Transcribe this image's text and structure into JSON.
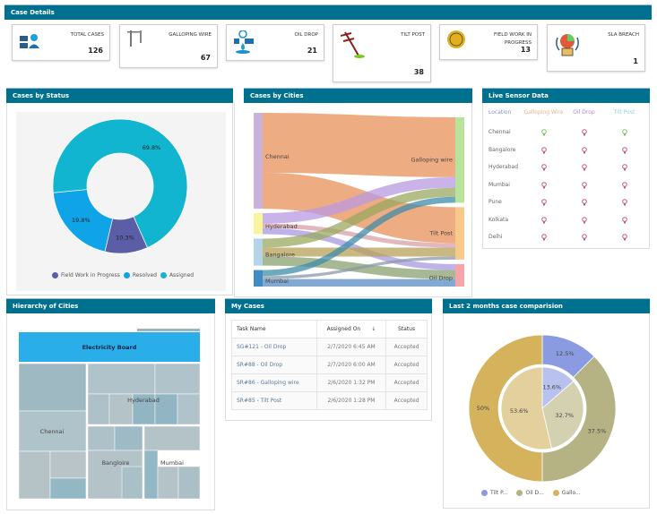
{
  "case_details": {
    "title": "Case Details",
    "cards": [
      {
        "label": "TOTAL CASES",
        "value": "126",
        "icon": "users-screen-icon"
      },
      {
        "label": "GALLOPING WIRE",
        "value": "67",
        "icon": "power-line-icon"
      },
      {
        "label": "OIL DROP",
        "value": "21",
        "icon": "oil-gauge-icon"
      },
      {
        "label": "TILT POST",
        "value": "38",
        "icon": "tilted-post-icon"
      },
      {
        "label": "FIELD WORK IN PROGRESS",
        "value": "13",
        "icon": "work-in-progress-badge-icon"
      },
      {
        "label": "SLA BREACH",
        "value": "1",
        "icon": "sla-timer-icon"
      }
    ]
  },
  "cases_by_status": {
    "title": "Cases by Status"
  },
  "cases_by_cities": {
    "title": "Cases by Cities"
  },
  "live_sensor": {
    "title": "Live Sensor Data",
    "headers": [
      "Location",
      "Galloping Wire",
      "Oil Drop",
      "Tilt Post"
    ],
    "header_colors": [
      "#7d96c8",
      "#e8b38a",
      "#b08ac8",
      "#8fd3d8"
    ],
    "rows": [
      {
        "location": "Chennai",
        "states": [
          "ok",
          "alert",
          "ok"
        ]
      },
      {
        "location": "Bangalore",
        "states": [
          "alert",
          "alert",
          "alert"
        ]
      },
      {
        "location": "Hyderabad",
        "states": [
          "alert",
          "alert",
          "alert"
        ]
      },
      {
        "location": "Mumbai",
        "states": [
          "alert",
          "alert",
          "alert"
        ]
      },
      {
        "location": "Pune",
        "states": [
          "alert",
          "alert",
          "alert"
        ]
      },
      {
        "location": "Kolkata",
        "states": [
          "alert",
          "alert",
          "alert"
        ]
      },
      {
        "location": "Delhi",
        "states": [
          "alert",
          "alert",
          "alert"
        ]
      }
    ],
    "colors": {
      "ok": "#7cc46a",
      "alert": "#c05a86"
    }
  },
  "hierarchy": {
    "title": "Hierarchy of Cities",
    "root": "Electricity Board",
    "cities": [
      "Chennai",
      "Hyderabad",
      "Bangloire",
      "Mumbai"
    ]
  },
  "my_cases": {
    "title": "My Cases",
    "headers": [
      "Task Name",
      "Assigned On",
      "Status"
    ],
    "rows": [
      [
        "SG#121 - Oil Drop",
        "2/7/2020 6:45 AM",
        "Accepted"
      ],
      [
        "SR#88 - Oil Drop",
        "2/7/2020 6:00 AM",
        "Accepted"
      ],
      [
        "SR#86 - Galloping wire",
        "2/6/2020 1:32 PM",
        "Accepted"
      ],
      [
        "SR#85 - Tilt Post",
        "2/6/2020 1:28 PM",
        "Accepted"
      ]
    ]
  },
  "comparison": {
    "title": "Last 2 months case comparision"
  },
  "chart_data": [
    {
      "type": "donut",
      "title": "Cases by Status",
      "legend": "bottom",
      "categories": [
        "Field Work in Progress",
        "Resolved",
        "Assigned"
      ],
      "values": [
        10.3,
        19.8,
        69.8
      ],
      "labels": [
        "10.3%",
        "19.8%",
        "69.8%"
      ],
      "colors": [
        "#5b5ea6",
        "#0fa3e8",
        "#12b5cf"
      ]
    },
    {
      "type": "sankey",
      "title": "Cases by Cities",
      "sources": [
        "Chennai",
        "Hyderabad",
        "Bangalore",
        "Mumbai"
      ],
      "targets": [
        "Galloping wire",
        "Tilt Post",
        "Oil Drop"
      ],
      "source_colors": [
        "#c9b3dc",
        "#f8f59a",
        "#b4d4e8",
        "#3f8cc4"
      ],
      "target_colors": [
        "#b9e39a",
        "#f9c98a",
        "#f6a4a8"
      ],
      "links": [
        {
          "from": "Chennai",
          "to": "Galloping wire",
          "value": 40,
          "color": "#e8905a"
        },
        {
          "from": "Chennai",
          "to": "Tilt Post",
          "value": 24,
          "color": "#e8905a"
        },
        {
          "from": "Hyderabad",
          "to": "Galloping wire",
          "value": 7,
          "color": "#b89ae0"
        },
        {
          "from": "Hyderabad",
          "to": "Tilt Post",
          "value": 3,
          "color": "#d8a0a8"
        },
        {
          "from": "Hyderabad",
          "to": "Oil Drop",
          "value": 4,
          "color": "#a89ae0"
        },
        {
          "from": "Bangalore",
          "to": "Galloping wire",
          "value": 6,
          "color": "#9aa860"
        },
        {
          "from": "Bangalore",
          "to": "Tilt Post",
          "value": 6,
          "color": "#b8a058"
        },
        {
          "from": "Bangalore",
          "to": "Oil Drop",
          "value": 6,
          "color": "#8aa070"
        },
        {
          "from": "Mumbai",
          "to": "Galloping wire",
          "value": 4,
          "color": "#3f8ca8"
        },
        {
          "from": "Mumbai",
          "to": "Tilt Post",
          "value": 2,
          "color": "#8a9aa8"
        },
        {
          "from": "Mumbai",
          "to": "Oil Drop",
          "value": 5,
          "color": "#5a8cc4"
        }
      ]
    },
    {
      "type": "pie",
      "title": "Last 2 months case comparision",
      "legend": "bottom",
      "categories": [
        "Tilt P...",
        "Oil D...",
        "Gallo..."
      ],
      "outer": {
        "values": [
          12.5,
          37.5,
          50
        ],
        "labels": [
          "12.5%",
          "37.5%",
          "50%"
        ],
        "colors": [
          "#8a9be2",
          "#b5b283",
          "#d4b35c"
        ]
      },
      "inner": {
        "values": [
          13.6,
          32.7,
          53.6
        ],
        "labels": [
          "13.6%",
          "32.7%",
          "53.6%"
        ],
        "colors": [
          "#b9c2ee",
          "#d3d1b0",
          "#e4d09c"
        ]
      }
    }
  ]
}
